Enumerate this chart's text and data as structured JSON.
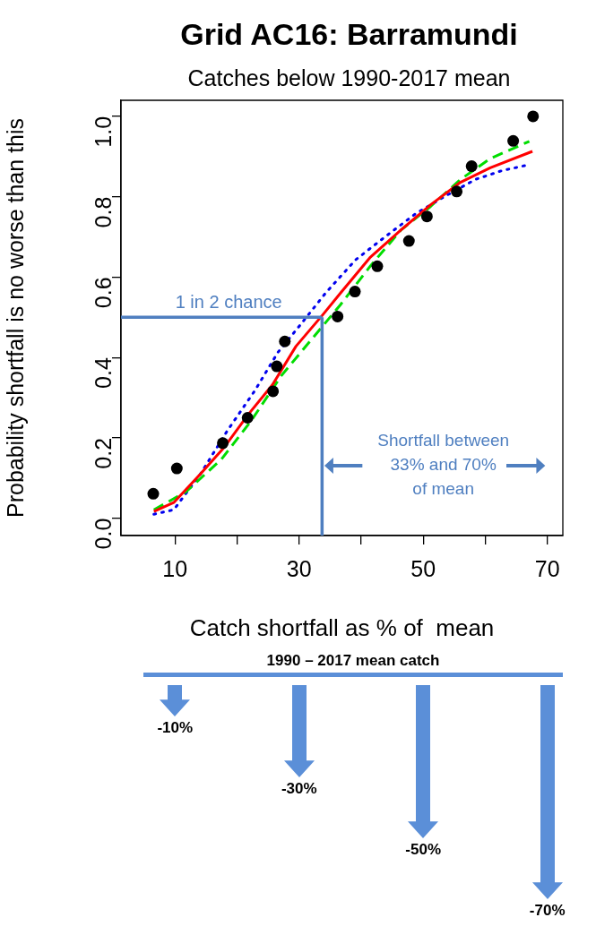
{
  "chart_data": {
    "type": "scatter",
    "title": "Grid AC16: Barramundi",
    "subtitle": "Catches below 1990-2017 mean",
    "xlabel": "Catch shortfall as % of  mean",
    "ylabel": "Probability shortfall is no worse than this",
    "xlim": [
      1.3,
      72.5
    ],
    "ylim": [
      -0.043,
      1.04
    ],
    "xticks": [
      10,
      {
        "value": 20,
        "label": null
      },
      30,
      {
        "value": 40,
        "label": null
      },
      50,
      {
        "value": 60,
        "label": null
      },
      70
    ],
    "yticks": [
      {
        "value": 0,
        "label": "0.0"
      },
      0.2,
      0.4,
      0.6,
      0.8,
      {
        "value": 1,
        "label": "1.0"
      }
    ],
    "grid": false,
    "legend": false,
    "series": [
      {
        "color": "#000000",
        "marker": "circle",
        "x": [
          6.5,
          10.3,
          17.7,
          21.7,
          25.8,
          26.4,
          27.7,
          36.2,
          39.0,
          42.6,
          47.7,
          50.6,
          55.4,
          57.8,
          64.5,
          67.7
        ],
        "values": [
          0.061,
          0.124,
          0.187,
          0.25,
          0.316,
          0.378,
          0.44,
          0.502,
          0.564,
          0.627,
          0.69,
          0.751,
          0.813,
          0.876,
          0.939,
          1.0
        ]
      },
      {
        "type": "line",
        "color": "#ff0000",
        "marker": "none",
        "line_style": "solid",
        "x": [
          6.6,
          9.8,
          14.1,
          17.9,
          21.8,
          25.7,
          29.5,
          33.8,
          36.7,
          41.5,
          46.4,
          51.2,
          56.0,
          60.8,
          67.6
        ],
        "values": [
          0.017,
          0.039,
          0.11,
          0.176,
          0.258,
          0.332,
          0.428,
          0.506,
          0.561,
          0.65,
          0.717,
          0.78,
          0.836,
          0.872,
          0.913
        ]
      },
      {
        "type": "line",
        "color": "#00dd00",
        "marker": "none",
        "line_style": "dashed",
        "x": [
          6.6,
          11.7,
          17.5,
          22.3,
          27.1,
          31.9,
          36.7,
          41.5,
          46.4,
          51.2,
          56.0,
          60.8,
          67.1
        ],
        "values": [
          0.021,
          0.065,
          0.147,
          0.243,
          0.354,
          0.443,
          0.532,
          0.628,
          0.717,
          0.776,
          0.843,
          0.895,
          0.938
        ]
      },
      {
        "type": "line",
        "color": "#0000ee",
        "marker": "none",
        "line_style": "dotted",
        "x": [
          6.6,
          9.8,
          14.1,
          18.4,
          22.8,
          26.6,
          30.5,
          34.3,
          39.1,
          44.0,
          48.8,
          53.6,
          58.4,
          62.7,
          67.1
        ],
        "values": [
          0.01,
          0.021,
          0.11,
          0.217,
          0.316,
          0.413,
          0.487,
          0.561,
          0.643,
          0.702,
          0.758,
          0.802,
          0.843,
          0.865,
          0.88
        ]
      }
    ],
    "ref_lines": [
      {
        "axis": "y",
        "value": 0.5,
        "label": "1 in 2 chance",
        "color": "#4f7fc0"
      },
      {
        "axis": "x",
        "value": 33.7,
        "label": "Shortfall between\n33% and 70%\nof mean",
        "color": "#4f7fc0"
      }
    ],
    "annotations": [
      "1990 – 2017 mean catch",
      "-10%",
      "-30%",
      "-50%",
      "-70%"
    ]
  }
}
